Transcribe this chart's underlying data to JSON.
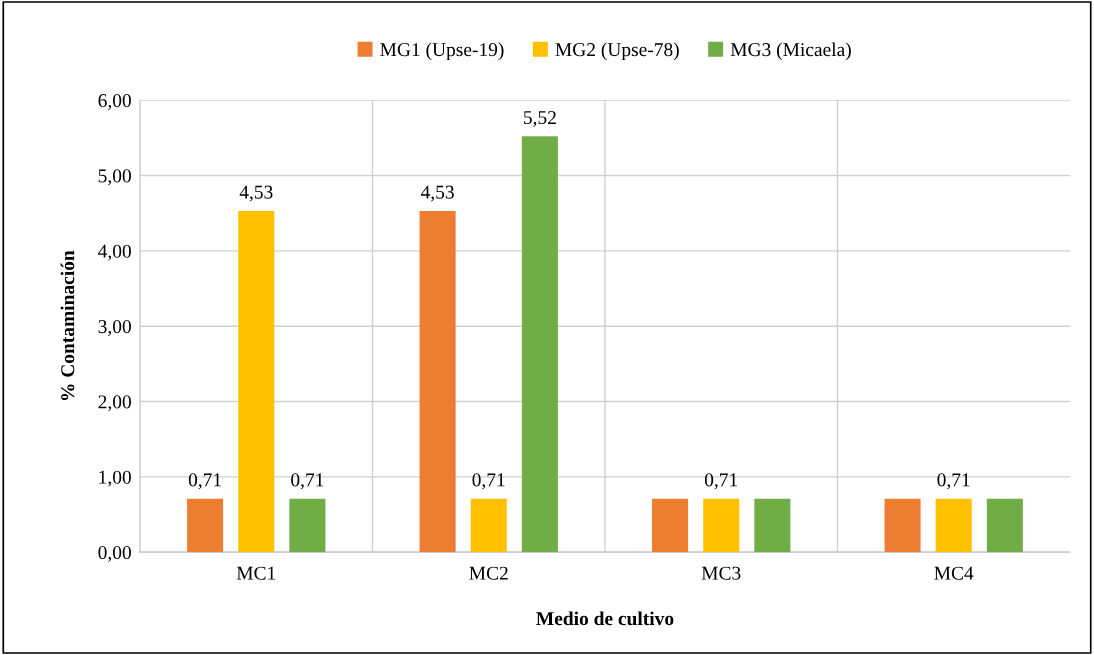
{
  "chart_data": {
    "type": "bar",
    "xlabel": "Medio de cultivo",
    "ylabel": "% Contaminación",
    "categories": [
      "MC1",
      "MC2",
      "MC3",
      "MC4"
    ],
    "series": [
      {
        "name": "MG1 (Upse-19)",
        "color": "#ed7d31",
        "values": [
          0.71,
          4.53,
          0.71,
          0.71
        ],
        "value_labels": [
          "0,71",
          "4,53",
          null,
          null
        ]
      },
      {
        "name": "MG2 (Upse-78)",
        "color": "#ffc000",
        "values": [
          4.53,
          0.71,
          0.71,
          0.71
        ],
        "value_labels": [
          "4,53",
          "0,71",
          "0,71",
          "0,71"
        ]
      },
      {
        "name": "MG3 (Micaela)",
        "color": "#70ad47",
        "values": [
          0.71,
          5.52,
          0.71,
          0.71
        ],
        "value_labels": [
          "0,71",
          "5,52",
          null,
          null
        ]
      }
    ],
    "ylim": [
      0,
      6
    ],
    "yticks": [
      {
        "value": 0,
        "label": "0,00"
      },
      {
        "value": 1,
        "label": "1,00"
      },
      {
        "value": 2,
        "label": "2,00"
      },
      {
        "value": 3,
        "label": "3,00"
      },
      {
        "value": 4,
        "label": "4,00"
      },
      {
        "value": 5,
        "label": "5,00"
      },
      {
        "value": 6,
        "label": "6,00"
      }
    ],
    "grid": true,
    "legend": "top"
  }
}
